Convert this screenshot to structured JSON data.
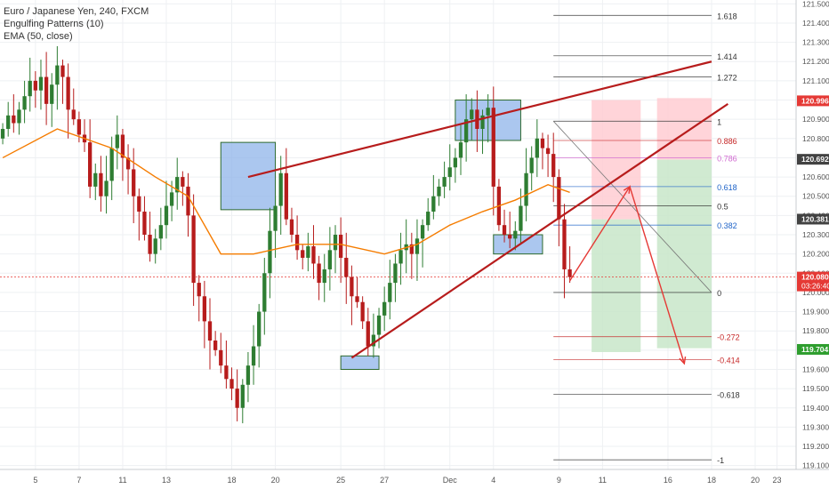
{
  "legend": {
    "symbol": "Euro / Japanese Yen, 240, FXCM",
    "study1": "Engulfing Patterns (10)",
    "study2": "EMA (50, close)"
  },
  "colors": {
    "up": "#2e7d32",
    "down": "#b71c1c",
    "ema": "#f57c00",
    "trend": "#b71c1c",
    "box_fill": "#8fb4ea",
    "box_stroke": "#2e6b2e",
    "reward_fill": "#c8e6c9",
    "risk_fill": "#ffcdd2",
    "arrow": "#e53935",
    "last_price": "#e53935",
    "label_red": "#e53935",
    "label_dark": "#424242",
    "label_green": "#2e9e2e"
  },
  "chart_data": {
    "type": "candlestick",
    "symbol": "EURJPY",
    "timeframe": "240",
    "ylim": [
      119.08,
      121.52
    ],
    "y_ticks": [
      121.5,
      121.4,
      121.3,
      121.2,
      121.1,
      121.0,
      120.9,
      120.8,
      120.7,
      120.6,
      120.5,
      120.4,
      120.3,
      120.2,
      120.1,
      120.0,
      119.9,
      119.8,
      119.7,
      119.6,
      119.5,
      119.4,
      119.3,
      119.2,
      119.1
    ],
    "x_labels": [
      {
        "label": "5",
        "bar": 6
      },
      {
        "label": "7",
        "bar": 14
      },
      {
        "label": "11",
        "bar": 22
      },
      {
        "label": "13",
        "bar": 30
      },
      {
        "label": "18",
        "bar": 42
      },
      {
        "label": "20",
        "bar": 50
      },
      {
        "label": "25",
        "bar": 62
      },
      {
        "label": "27",
        "bar": 70
      },
      {
        "label": "Dec",
        "bar": 82
      },
      {
        "label": "4",
        "bar": 90
      },
      {
        "label": "9",
        "bar": 102
      },
      {
        "label": "11",
        "bar": 110
      },
      {
        "label": "16",
        "bar": 122
      },
      {
        "label": "18",
        "bar": 130
      },
      {
        "label": "20",
        "bar": 138
      },
      {
        "label": "23",
        "bar": 142
      }
    ],
    "bar_count": 146,
    "closes": [
      120.85,
      120.92,
      120.88,
      120.95,
      121.02,
      121.1,
      121.05,
      121.12,
      120.98,
      121.08,
      121.18,
      121.12,
      120.95,
      120.9,
      120.82,
      120.78,
      120.55,
      120.62,
      120.5,
      120.58,
      120.75,
      120.82,
      120.7,
      120.64,
      120.5,
      120.42,
      120.3,
      120.2,
      120.28,
      120.35,
      120.45,
      120.52,
      120.6,
      120.55,
      120.4,
      120.05,
      119.98,
      119.85,
      119.75,
      119.7,
      119.62,
      119.55,
      119.5,
      119.4,
      119.52,
      119.62,
      119.72,
      119.9,
      120.1,
      120.32,
      120.45,
      120.62,
      120.38,
      120.3,
      120.22,
      120.18,
      120.24,
      120.15,
      120.05,
      120.12,
      120.22,
      120.3,
      120.18,
      120.08,
      119.98,
      119.95,
      119.85,
      119.72,
      119.78,
      119.88,
      119.95,
      120.05,
      120.15,
      120.22,
      120.25,
      120.2,
      120.28,
      120.35,
      120.42,
      120.5,
      120.55,
      120.6,
      120.65,
      120.7,
      120.78,
      120.9,
      120.95,
      120.85,
      120.92,
      120.96,
      120.55,
      120.35,
      120.3,
      120.28,
      120.32,
      120.45,
      120.62,
      120.7,
      120.8,
      120.75,
      120.72,
      120.6,
      120.38,
      120.12,
      120.08
    ],
    "ema50_points": [
      {
        "bar": 0,
        "value": 120.7
      },
      {
        "bar": 10,
        "value": 120.85
      },
      {
        "bar": 20,
        "value": 120.75
      },
      {
        "bar": 28,
        "value": 120.6
      },
      {
        "bar": 34,
        "value": 120.5
      },
      {
        "bar": 40,
        "value": 120.2
      },
      {
        "bar": 46,
        "value": 120.2
      },
      {
        "bar": 54,
        "value": 120.25
      },
      {
        "bar": 62,
        "value": 120.25
      },
      {
        "bar": 70,
        "value": 120.2
      },
      {
        "bar": 76,
        "value": 120.25
      },
      {
        "bar": 82,
        "value": 120.35
      },
      {
        "bar": 88,
        "value": 120.42
      },
      {
        "bar": 94,
        "value": 120.48
      },
      {
        "bar": 100,
        "value": 120.56
      },
      {
        "bar": 104,
        "value": 120.52
      }
    ],
    "trendlines": [
      {
        "name": "upper-channel",
        "from": {
          "bar": 45,
          "value": 120.6
        },
        "to": {
          "bar": 130,
          "value": 121.2
        }
      },
      {
        "name": "lower-channel",
        "from": {
          "bar": 64,
          "value": 119.66
        },
        "to": {
          "bar": 133,
          "value": 120.98
        }
      }
    ],
    "pattern_boxes": [
      {
        "from_bar": 40,
        "to_bar": 50,
        "top": 120.78,
        "bottom": 120.43
      },
      {
        "from_bar": 62,
        "to_bar": 69,
        "top": 119.67,
        "bottom": 119.6
      },
      {
        "from_bar": 83,
        "to_bar": 95,
        "top": 121.0,
        "bottom": 120.79
      },
      {
        "from_bar": 90,
        "to_bar": 99,
        "top": 120.3,
        "bottom": 120.2
      }
    ],
    "fibonacci": {
      "from_bar": 101,
      "to_bar": 130,
      "label_bar": 131,
      "levels": [
        {
          "ratio": "1.618",
          "price": 121.44
        },
        {
          "ratio": "1.414",
          "price": 121.23
        },
        {
          "ratio": "1.272",
          "price": 121.12
        },
        {
          "ratio": "1",
          "price": 120.89
        },
        {
          "ratio": "0.886",
          "price": 120.79
        },
        {
          "ratio": "0.786",
          "price": 120.7
        },
        {
          "ratio": "0.618",
          "price": 120.55
        },
        {
          "ratio": "0.5",
          "price": 120.45
        },
        {
          "ratio": "0.382",
          "price": 120.35
        },
        {
          "ratio": "0",
          "price": 120.0
        },
        {
          "ratio": "-0.272",
          "price": 119.77
        },
        {
          "ratio": "-0.414",
          "price": 119.65
        },
        {
          "ratio": "-0.618",
          "price": 119.47
        },
        {
          "ratio": "-1",
          "price": 119.13
        }
      ]
    },
    "positions": [
      {
        "from_bar": 108,
        "to_bar": 117,
        "risk_top": 121.0,
        "entry": 120.38,
        "reward_bottom": 119.69
      },
      {
        "from_bar": 120,
        "to_bar": 130,
        "risk_top": 121.01,
        "entry": 120.69,
        "reward_bottom": 119.71
      }
    ],
    "projection_path": [
      {
        "bar": 104,
        "value": 120.06
      },
      {
        "bar": 115,
        "value": 120.55
      },
      {
        "bar": 125,
        "value": 119.63
      }
    ],
    "diagonal": {
      "from": {
        "bar": 101,
        "value": 120.89
      },
      "to": {
        "bar": 130,
        "value": 120.0
      }
    },
    "last_price_line": 120.08,
    "price_labels": [
      {
        "price": 120.996,
        "text": "120.996",
        "kind": "red"
      },
      {
        "price": 120.692,
        "text": "120.692",
        "kind": "dark"
      },
      {
        "price": 120.381,
        "text": "120.381",
        "kind": "dark"
      },
      {
        "price": 120.08,
        "text": "120.080",
        "kind": "red",
        "sub": "03:26:40"
      },
      {
        "price": 119.704,
        "text": "119.704",
        "kind": "green"
      }
    ]
  }
}
